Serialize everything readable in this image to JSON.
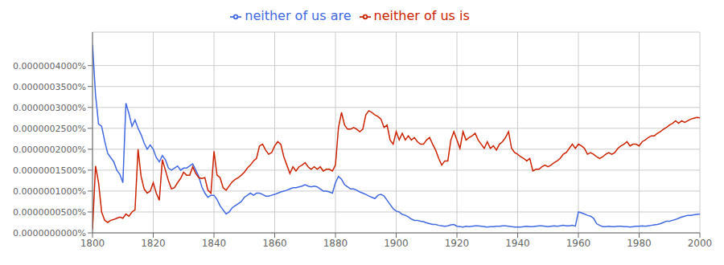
{
  "chart_data": {
    "type": "line",
    "grid": true,
    "legend": "top",
    "x": [
      1800,
      1801,
      1802,
      1803,
      1804,
      1805,
      1806,
      1807,
      1808,
      1809,
      1810,
      1811,
      1812,
      1813,
      1814,
      1815,
      1816,
      1817,
      1818,
      1819,
      1820,
      1821,
      1822,
      1823,
      1824,
      1825,
      1826,
      1827,
      1828,
      1829,
      1830,
      1831,
      1832,
      1833,
      1834,
      1835,
      1836,
      1837,
      1838,
      1839,
      1840,
      1841,
      1842,
      1843,
      1844,
      1845,
      1846,
      1847,
      1848,
      1849,
      1850,
      1851,
      1852,
      1853,
      1854,
      1855,
      1856,
      1857,
      1858,
      1859,
      1860,
      1861,
      1862,
      1863,
      1864,
      1865,
      1866,
      1867,
      1868,
      1869,
      1870,
      1871,
      1872,
      1873,
      1874,
      1875,
      1876,
      1877,
      1878,
      1879,
      1880,
      1881,
      1882,
      1883,
      1884,
      1885,
      1886,
      1887,
      1888,
      1889,
      1890,
      1891,
      1892,
      1893,
      1894,
      1895,
      1896,
      1897,
      1898,
      1899,
      1900,
      1901,
      1902,
      1903,
      1904,
      1905,
      1906,
      1907,
      1908,
      1909,
      1910,
      1911,
      1912,
      1913,
      1914,
      1915,
      1916,
      1917,
      1918,
      1919,
      1920,
      1921,
      1922,
      1923,
      1924,
      1925,
      1926,
      1927,
      1928,
      1929,
      1930,
      1931,
      1932,
      1933,
      1934,
      1935,
      1936,
      1937,
      1938,
      1939,
      1940,
      1941,
      1942,
      1943,
      1944,
      1945,
      1946,
      1947,
      1948,
      1949,
      1950,
      1951,
      1952,
      1953,
      1954,
      1955,
      1956,
      1957,
      1958,
      1959,
      1960,
      1961,
      1962,
      1963,
      1964,
      1965,
      1966,
      1967,
      1968,
      1969,
      1970,
      1971,
      1972,
      1973,
      1974,
      1975,
      1976,
      1977,
      1978,
      1979,
      1980,
      1981,
      1982,
      1983,
      1984,
      1985,
      1986,
      1987,
      1988,
      1989,
      1990,
      1991,
      1992,
      1993,
      1994,
      1995,
      1996,
      1997,
      1998,
      1999,
      2000
    ],
    "series": [
      {
        "name": "neither of us are",
        "color": "#4169e1",
        "values": [
          4.5e-07,
          3.3e-07,
          2.6e-07,
          2.55e-07,
          2.2e-07,
          1.9e-07,
          1.8e-07,
          1.7e-07,
          1.5e-07,
          1.4e-07,
          1.2e-07,
          3.1e-07,
          2.85e-07,
          2.55e-07,
          2.7e-07,
          2.5e-07,
          2.35e-07,
          2.15e-07,
          2e-07,
          2.1e-07,
          2e-07,
          1.8e-07,
          1.7e-07,
          1.85e-07,
          1.75e-07,
          1.55e-07,
          1.5e-07,
          1.55e-07,
          1.6e-07,
          1.5e-07,
          1.55e-07,
          1.55e-07,
          1.6e-07,
          1.65e-07,
          1.5e-07,
          1.35e-07,
          1.1e-07,
          9.5e-08,
          8.5e-08,
          9e-08,
          9e-08,
          8e-08,
          6.5e-08,
          5.5e-08,
          4.5e-08,
          5e-08,
          6e-08,
          6.5e-08,
          7e-08,
          7.5e-08,
          8.5e-08,
          9e-08,
          9.5e-08,
          9e-08,
          9.5e-08,
          9.5e-08,
          9.2e-08,
          8.8e-08,
          8.8e-08,
          9e-08,
          9.2e-08,
          9.5e-08,
          9.8e-08,
          1e-07,
          1.02e-07,
          1.05e-07,
          1.08e-07,
          1.08e-07,
          1.1e-07,
          1.12e-07,
          1.15e-07,
          1.12e-07,
          1.1e-07,
          1.12e-07,
          1.1e-07,
          1.05e-07,
          1e-07,
          1e-07,
          9.8e-08,
          9.5e-08,
          1.2e-07,
          1.35e-07,
          1.28e-07,
          1.15e-07,
          1.1e-07,
          1.05e-07,
          1.05e-07,
          1.02e-07,
          9.8e-08,
          9.5e-08,
          9.2e-08,
          8.8e-08,
          8.5e-08,
          8.2e-08,
          9e-08,
          9.2e-08,
          8.8e-08,
          7.8e-08,
          6.8e-08,
          5.8e-08,
          5.2e-08,
          5e-08,
          4.4e-08,
          4.2e-08,
          3.8e-08,
          3.3e-08,
          3e-08,
          3e-08,
          2.8e-08,
          2.7e-08,
          2.4e-08,
          2.2e-08,
          2e-08,
          2e-08,
          1.8e-08,
          1.7e-08,
          1.6e-08,
          1.7e-08,
          1.9e-08,
          2e-08,
          1.6e-08,
          1.5e-08,
          1.4e-08,
          1.6e-08,
          1.5e-08,
          1.6e-08,
          1.7e-08,
          1.7e-08,
          1.6e-08,
          1.5e-08,
          1.4e-08,
          1.5e-08,
          1.5e-08,
          1.6e-08,
          1.6e-08,
          1.7e-08,
          1.7e-08,
          1.6e-08,
          1.5e-08,
          1.4e-08,
          1.4e-08,
          1.4e-08,
          1.5e-08,
          1.6e-08,
          1.5e-08,
          1.5e-08,
          1.6e-08,
          1.7e-08,
          1.7e-08,
          1.6e-08,
          1.5e-08,
          1.6e-08,
          1.7e-08,
          1.6e-08,
          1.7e-08,
          1.8e-08,
          1.7e-08,
          1.7e-08,
          1.8e-08,
          1.6e-08,
          5e-08,
          4.8e-08,
          4.5e-08,
          4.2e-08,
          4e-08,
          3.5e-08,
          2.2e-08,
          1.8e-08,
          1.5e-08,
          1.5e-08,
          1.6e-08,
          1.5e-08,
          1.5e-08,
          1.6e-08,
          1.6e-08,
          1.5e-08,
          1.5e-08,
          1.4e-08,
          1.5e-08,
          1.6e-08,
          1.6e-08,
          1.7e-08,
          1.6e-08,
          1.7e-08,
          1.8e-08,
          1.9e-08,
          2e-08,
          2.2e-08,
          2.5e-08,
          2.8e-08,
          2.8e-08,
          3e-08,
          3.2e-08,
          3.5e-08,
          3.8e-08,
          4e-08,
          4.2e-08,
          4.2e-08,
          4.3e-08,
          4.4e-08,
          4.5e-08
        ]
      },
      {
        "name": "neither of us is",
        "color": "#cc2200",
        "values": [
          8e-09,
          1.6e-07,
          1.2e-07,
          5e-08,
          3e-08,
          2.5e-08,
          3e-08,
          3.2e-08,
          3.5e-08,
          3.8e-08,
          3.5e-08,
          4.5e-08,
          4e-08,
          5e-08,
          5.5e-08,
          2e-07,
          1.35e-07,
          1.05e-07,
          9.5e-08,
          1e-07,
          1.2e-07,
          9.5e-08,
          7.8e-08,
          1.75e-07,
          1.5e-07,
          1.25e-07,
          1.05e-07,
          1.08e-07,
          1.2e-07,
          1.3e-07,
          1.45e-07,
          1.38e-07,
          1.38e-07,
          1.58e-07,
          1.42e-07,
          1.32e-07,
          1.3e-07,
          1.32e-07,
          1.02e-07,
          9.5e-08,
          1.95e-07,
          1.38e-07,
          1.32e-07,
          1.08e-07,
          1.02e-07,
          1.12e-07,
          1.22e-07,
          1.28e-07,
          1.32e-07,
          1.38e-07,
          1.45e-07,
          1.55e-07,
          1.62e-07,
          1.72e-07,
          1.78e-07,
          2.08e-07,
          2.12e-07,
          1.98e-07,
          1.88e-07,
          1.92e-07,
          2.08e-07,
          2.18e-07,
          2.12e-07,
          1.82e-07,
          1.62e-07,
          1.42e-07,
          1.58e-07,
          1.48e-07,
          1.58e-07,
          1.62e-07,
          1.68e-07,
          1.58e-07,
          1.52e-07,
          1.58e-07,
          1.52e-07,
          1.58e-07,
          1.48e-07,
          1.52e-07,
          1.52e-07,
          1.48e-07,
          1.62e-07,
          2.52e-07,
          2.88e-07,
          2.58e-07,
          2.48e-07,
          2.48e-07,
          2.52e-07,
          2.48e-07,
          2.42e-07,
          2.48e-07,
          2.82e-07,
          2.92e-07,
          2.88e-07,
          2.82e-07,
          2.78e-07,
          2.72e-07,
          2.52e-07,
          2.58e-07,
          2.22e-07,
          2.12e-07,
          2.42e-07,
          2.22e-07,
          2.38e-07,
          2.22e-07,
          2.32e-07,
          2.22e-07,
          2.28e-07,
          2.18e-07,
          2.12e-07,
          2.12e-07,
          2.22e-07,
          2.28e-07,
          2.12e-07,
          1.98e-07,
          1.78e-07,
          1.62e-07,
          1.72e-07,
          1.72e-07,
          2.22e-07,
          2.42e-07,
          2.22e-07,
          2.02e-07,
          2.42e-07,
          2.22e-07,
          2.28e-07,
          2.32e-07,
          2.38e-07,
          2.22e-07,
          2.12e-07,
          2.02e-07,
          2.18e-07,
          2.02e-07,
          2.08e-07,
          1.98e-07,
          2.12e-07,
          2.18e-07,
          2.28e-07,
          2.42e-07,
          2.02e-07,
          1.92e-07,
          1.88e-07,
          1.82e-07,
          1.78e-07,
          1.72e-07,
          1.78e-07,
          1.48e-07,
          1.52e-07,
          1.52e-07,
          1.58e-07,
          1.62e-07,
          1.58e-07,
          1.62e-07,
          1.68e-07,
          1.72e-07,
          1.78e-07,
          1.88e-07,
          1.92e-07,
          2.02e-07,
          2.12e-07,
          2.02e-07,
          2.12e-07,
          2.08e-07,
          2.02e-07,
          1.88e-07,
          1.92e-07,
          1.88e-07,
          1.82e-07,
          1.78e-07,
          1.82e-07,
          1.88e-07,
          1.92e-07,
          1.88e-07,
          1.92e-07,
          2.02e-07,
          2.08e-07,
          2.12e-07,
          2.18e-07,
          2.08e-07,
          2.12e-07,
          2.12e-07,
          2.08e-07,
          2.18e-07,
          2.22e-07,
          2.28e-07,
          2.32e-07,
          2.32e-07,
          2.38e-07,
          2.42e-07,
          2.48e-07,
          2.52e-07,
          2.58e-07,
          2.62e-07,
          2.68e-07,
          2.62e-07,
          2.68e-07,
          2.64e-07,
          2.68e-07,
          2.72e-07,
          2.74e-07,
          2.76e-07,
          2.75e-07
        ]
      }
    ],
    "xlim": [
      1800,
      2000
    ],
    "xticks": [
      1800,
      1820,
      1840,
      1860,
      1880,
      1900,
      1920,
      1940,
      1960,
      1980,
      2000
    ],
    "ylim": [
      0,
      4.8e-07
    ],
    "yticks": [
      {
        "value": 0.0,
        "label": "0.0000000000%"
      },
      {
        "value": 5e-08,
        "label": "0.0000000500%"
      },
      {
        "value": 1e-07,
        "label": "0.0000001000%"
      },
      {
        "value": 1.5e-07,
        "label": "0.0000001500%"
      },
      {
        "value": 2e-07,
        "label": "0.0000002000%"
      },
      {
        "value": 2.5e-07,
        "label": "0.0000002500%"
      },
      {
        "value": 3e-07,
        "label": "0.0000003000%"
      },
      {
        "value": 3.5e-07,
        "label": "0.0000003500%"
      },
      {
        "value": 4e-07,
        "label": "0.0000004000%"
      }
    ]
  }
}
